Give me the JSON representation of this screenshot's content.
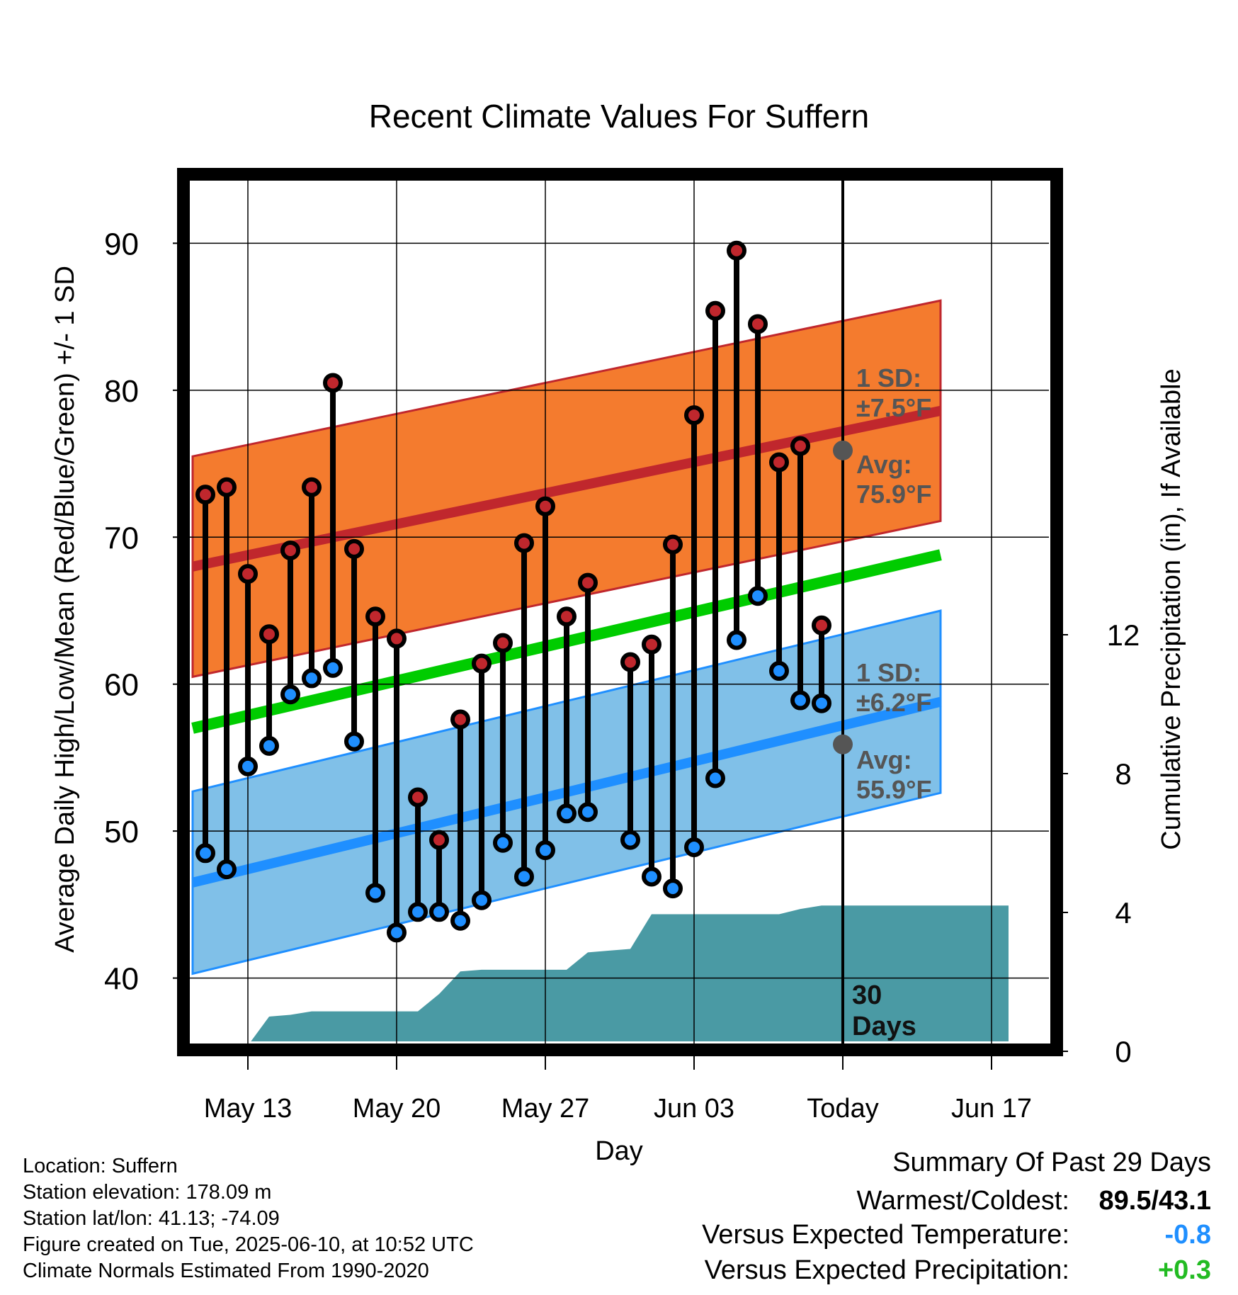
{
  "chart_data": {
    "type": "line",
    "title": "Recent Climate Values For Suffern",
    "xlabel": "Day",
    "ylabel": "Average Daily High/Low/Mean (Red/Blue/Green) +/- 1 SD",
    "y2label": "Cumulative Precipitation (in), If Available",
    "ylim": [
      35.5,
      94.5
    ],
    "y2lim": [
      0,
      20
    ],
    "xlim": [
      0,
      58.5
    ],
    "yticks": [
      "40",
      "50",
      "60",
      "70",
      "80",
      "90"
    ],
    "y2ticks": [
      "0",
      "4",
      "8",
      "12"
    ],
    "xticks": [
      {
        "day": 0,
        "label": "May 13"
      },
      {
        "day": 7,
        "label": "May 20"
      },
      {
        "day": 14,
        "label": "May 27"
      },
      {
        "day": 21,
        "label": "Jun 03"
      },
      {
        "day": 28,
        "label": "Today"
      },
      {
        "day": 35,
        "label": "Jun 17"
      }
    ],
    "days": [
      -2,
      -1,
      0,
      1,
      2,
      3,
      4,
      5,
      6,
      7,
      8,
      9,
      10,
      11,
      12,
      13,
      14,
      15,
      16,
      17,
      18,
      19,
      20,
      21,
      22,
      23,
      24,
      25,
      26,
      27
    ],
    "series": [
      {
        "name": "High",
        "color": "#c0272d",
        "values": [
          72.9,
          73.4,
          67.5,
          63.4,
          69.1,
          73.4,
          80.5,
          69.2,
          64.6,
          63.1,
          52.3,
          49.4,
          57.6,
          61.4,
          62.8,
          69.6,
          72.1,
          64.6,
          66.9,
          null,
          61.5,
          62.7,
          69.5,
          78.3,
          85.4,
          89.5,
          84.5,
          75.1,
          76.2,
          64.0
        ]
      },
      {
        "name": "Low",
        "color": "#1f8fff",
        "values": [
          48.5,
          47.4,
          54.4,
          55.8,
          59.3,
          60.4,
          61.1,
          56.1,
          45.8,
          43.1,
          44.5,
          44.5,
          43.9,
          45.3,
          49.2,
          46.9,
          48.7,
          51.2,
          51.3,
          null,
          49.4,
          46.9,
          46.1,
          48.9,
          53.6,
          63.0,
          66.0,
          60.9,
          58.9,
          58.7
        ]
      }
    ],
    "normals": {
      "high": {
        "start": 68.0,
        "end": 78.6,
        "sd": 7.5,
        "color": "#c0272d",
        "band_color": "#f47b2e"
      },
      "low": {
        "start": 46.5,
        "end": 58.8,
        "sd": 6.2,
        "color": "#1f8fff",
        "band_color": "#80c0e8"
      },
      "mean": {
        "start": 57.0,
        "end": 68.8,
        "color": "#00cc00"
      }
    },
    "precipitation": {
      "color": "#4a9aa4",
      "days": [
        -0.2,
        1,
        2,
        3,
        4,
        5,
        6,
        7,
        8,
        9,
        10,
        11,
        12,
        13,
        14,
        15,
        16,
        17,
        18,
        19,
        20,
        21,
        22,
        23,
        24,
        25,
        26,
        27,
        28,
        35.8
      ],
      "values": [
        0,
        1.0,
        1.05,
        1.15,
        1.15,
        1.15,
        1.15,
        1.15,
        1.15,
        1.65,
        2.3,
        2.35,
        2.35,
        2.35,
        2.35,
        2.35,
        2.85,
        2.9,
        2.95,
        3.95,
        3.95,
        3.95,
        3.95,
        3.95,
        3.95,
        3.95,
        4.1,
        4.2,
        4.2,
        4.2
      ]
    },
    "today_markers": {
      "high_label": "1 SD:",
      "high_sd": "±7.5°F",
      "high_avg_label": "Avg:",
      "high_avg": "75.9°F",
      "low_label": "1 SD:",
      "low_sd": "±6.2°F",
      "low_avg_label": "Avg:",
      "low_avg": "55.9°F",
      "days_count": "30",
      "days_word": "Days",
      "high_avg_value": 75.9,
      "low_avg_value": 55.9
    }
  },
  "info": {
    "location": "Location: Suffern",
    "elevation": "Station elevation: 178.09 m",
    "latlon": "Station lat/lon: 41.13; -74.09",
    "created": "Figure created on Tue, 2025-06-10, at 10:52 UTC",
    "normals": "Climate Normals Estimated From 1990-2020"
  },
  "summary": {
    "title": "Summary Of Past 29 Days",
    "warm_label": "Warmest/Coldest:",
    "warm_value": "89.5/43.1",
    "temp_label": "Versus Expected Temperature:",
    "temp_value": "-0.8",
    "temp_color": "#1f8fff",
    "precip_label": "Versus Expected Precipitation:",
    "precip_value": "+0.3",
    "precip_color": "#22bb22"
  }
}
